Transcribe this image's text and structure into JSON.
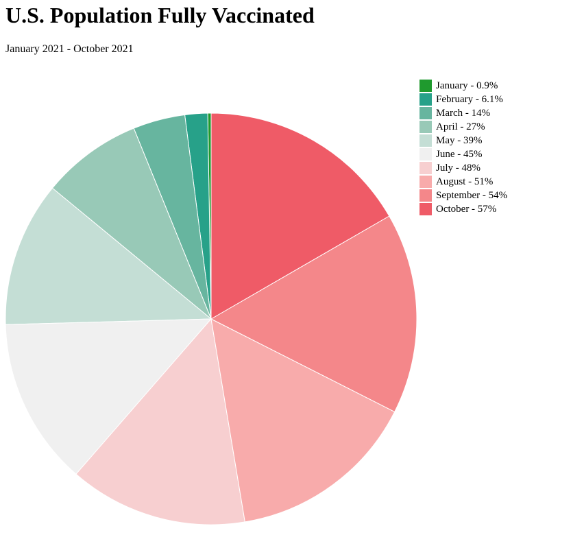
{
  "title": "U.S. Population Fully Vaccinated",
  "subtitle": "January 2021 - October 2021",
  "chart_data": {
    "type": "pie",
    "title": "U.S. Population Fully Vaccinated",
    "subtitle": "January 2021 - October 2021",
    "legend_position": "top-right",
    "categories": [
      "January",
      "February",
      "March",
      "April",
      "May",
      "June",
      "July",
      "August",
      "September",
      "October"
    ],
    "values": [
      0.9,
      6.1,
      14,
      27,
      39,
      45,
      48,
      51,
      54,
      57
    ],
    "legend_labels": [
      "January - 0.9%",
      "February - 6.1%",
      "March - 14%",
      "April - 27%",
      "May - 39%",
      "June - 45%",
      "July - 48%",
      "August - 51%",
      "September - 54%",
      "October - 57%"
    ],
    "colors": [
      "#1f9a2e",
      "#27a189",
      "#67b59f",
      "#98c9b7",
      "#c4ded5",
      "#f0f0f0",
      "#f7cfd0",
      "#f8abab",
      "#f4878a",
      "#ef5b67"
    ]
  }
}
